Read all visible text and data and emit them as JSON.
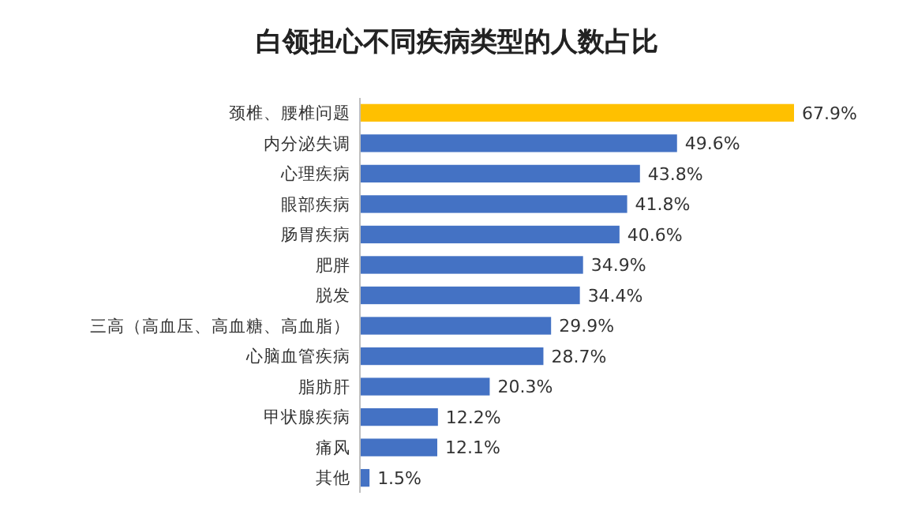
{
  "chart_data": {
    "type": "bar",
    "orientation": "horizontal",
    "title": "白领担心不同疾病类型的人数占比",
    "categories": [
      "颈椎、腰椎问题",
      "内分泌失调",
      "心理疾病",
      "眼部疾病",
      "肠胃疾病",
      "肥胖",
      "脱发",
      "三高（高血压、高血糖、高血脂）",
      "心脑血管疾病",
      "脂肪肝",
      "甲状腺疾病",
      "痛风",
      "其他"
    ],
    "values": [
      67.9,
      49.6,
      43.8,
      41.8,
      40.6,
      34.9,
      34.4,
      29.9,
      28.7,
      20.3,
      12.2,
      12.1,
      1.5
    ],
    "colors": [
      "#ffc000",
      "#4472c4",
      "#4472c4",
      "#4472c4",
      "#4472c4",
      "#4472c4",
      "#4472c4",
      "#4472c4",
      "#4472c4",
      "#4472c4",
      "#4472c4",
      "#4472c4",
      "#4472c4"
    ],
    "value_labels": [
      "67.9%",
      "49.6%",
      "43.8%",
      "41.8%",
      "40.6%",
      "34.9%",
      "34.4%",
      "29.9%",
      "28.7%",
      "20.3%",
      "12.2%",
      "12.1%",
      "1.5%"
    ]
  }
}
